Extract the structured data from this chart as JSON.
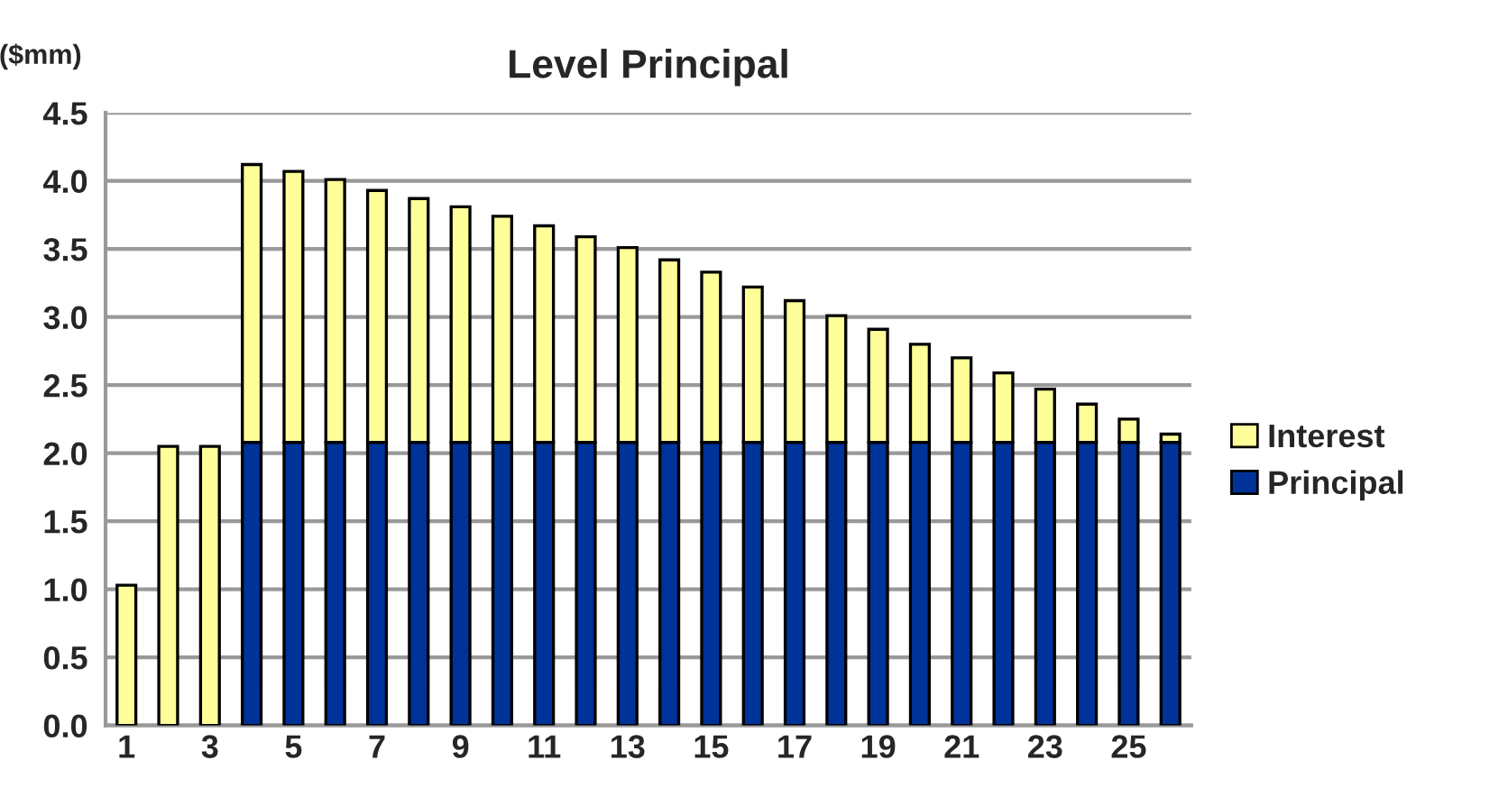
{
  "chart_data": {
    "type": "bar",
    "title": "Level Principal",
    "ylabel": "($mm)",
    "stacked": true,
    "categories": [
      "1",
      null,
      "3",
      null,
      "5",
      null,
      "7",
      null,
      "9",
      null,
      "11",
      null,
      "13",
      null,
      "15",
      null,
      "17",
      null,
      "19",
      null,
      "21",
      null,
      "23",
      null,
      "25",
      null
    ],
    "series": [
      {
        "name": "Principal",
        "color": "#003399",
        "values": [
          0,
          0,
          0,
          2.08,
          2.08,
          2.08,
          2.08,
          2.08,
          2.08,
          2.08,
          2.08,
          2.08,
          2.08,
          2.08,
          2.08,
          2.08,
          2.08,
          2.08,
          2.08,
          2.08,
          2.08,
          2.08,
          2.08,
          2.08,
          2.08,
          2.08
        ]
      },
      {
        "name": "Interest",
        "color": "#ffff99",
        "values": [
          1.03,
          2.05,
          2.05,
          2.04,
          1.99,
          1.93,
          1.85,
          1.79,
          1.73,
          1.66,
          1.59,
          1.51,
          1.43,
          1.34,
          1.25,
          1.14,
          1.04,
          0.93,
          0.83,
          0.72,
          0.62,
          0.51,
          0.39,
          0.28,
          0.17,
          0.06
        ]
      }
    ],
    "ylim": [
      0,
      4.5
    ],
    "yticks": [
      {
        "value": 0,
        "label": "0.0"
      },
      {
        "value": 0.5,
        "label": "0.5"
      },
      {
        "value": 1,
        "label": "1.0"
      },
      {
        "value": 1.5,
        "label": "1.5"
      },
      {
        "value": 2,
        "label": "2.0"
      },
      {
        "value": 2.5,
        "label": "2.5"
      },
      {
        "value": 3,
        "label": "3.0"
      },
      {
        "value": 3.5,
        "label": "3.5"
      },
      {
        "value": 4,
        "label": "4.0"
      },
      {
        "value": 4.5,
        "label": "4.5"
      }
    ],
    "grid": "y",
    "legend": "right"
  }
}
